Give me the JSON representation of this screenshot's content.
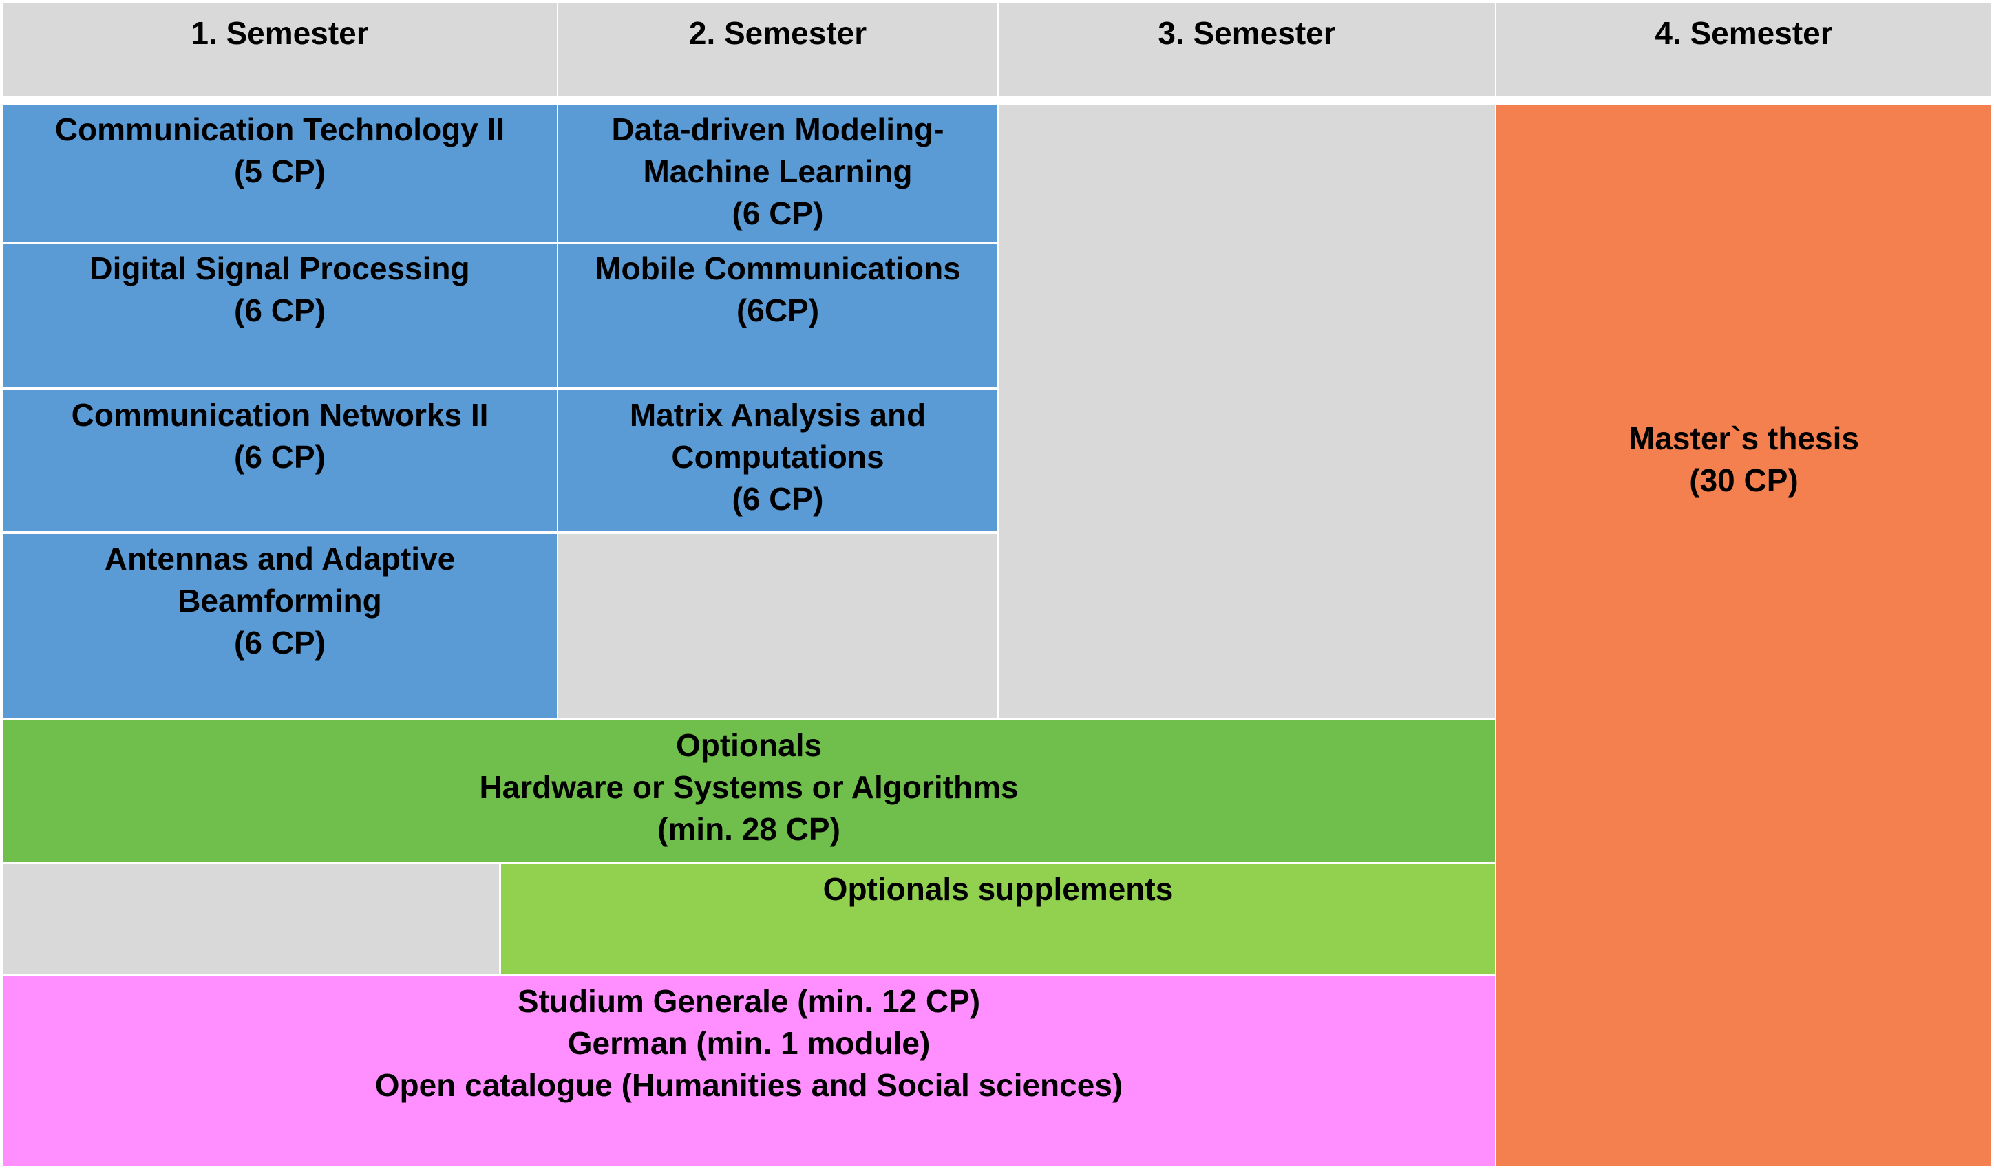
{
  "colors": {
    "header": "#d9d9d9",
    "empty": "#d9d9d9",
    "core_module": "#5b9bd5",
    "optionals": "#70bf4c",
    "optionals_supplements": "#92d050",
    "studium_generale": "#ff8fff",
    "thesis": "#f4804f",
    "text": "#000000",
    "grid_line": "#ffffff"
  },
  "headers": [
    "1. Semester",
    "2. Semester",
    "3. Semester",
    "4. Semester"
  ],
  "semester1": {
    "modules": [
      {
        "lines": [
          "Communication Technology II",
          "(5 CP)"
        ]
      },
      {
        "lines": [
          "Digital Signal Processing",
          "(6 CP)"
        ]
      },
      {
        "lines": [
          "Communication Networks II",
          "(6 CP)"
        ]
      },
      {
        "lines": [
          "Antennas and Adaptive",
          "Beamforming",
          "(6 CP)"
        ]
      }
    ]
  },
  "semester2": {
    "modules": [
      {
        "lines": [
          "Data-driven Modeling-",
          "Machine Learning",
          "(6 CP)"
        ]
      },
      {
        "lines": [
          "Mobile Communications",
          "(6CP)"
        ]
      },
      {
        "lines": [
          "Matrix Analysis and",
          "Computations",
          "(6 CP)"
        ]
      }
    ]
  },
  "optionals": {
    "lines": [
      "Optionals",
      "Hardware or Systems or Algorithms",
      "(min. 28 CP)"
    ]
  },
  "optionals_supplements": {
    "lines": [
      "Optionals supplements"
    ]
  },
  "studium_generale": {
    "lines": [
      "Studium Generale (min. 12 CP)",
      "German (min. 1 module)",
      "Open catalogue (Humanities and Social sciences)"
    ]
  },
  "thesis": {
    "lines": [
      "Master`s thesis",
      "(30 CP)"
    ]
  }
}
